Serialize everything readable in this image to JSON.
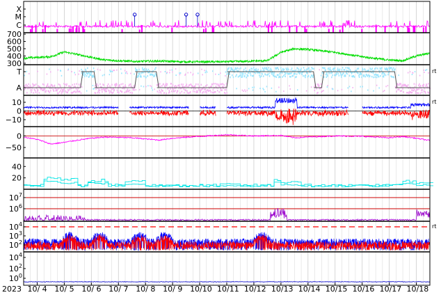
{
  "figure": {
    "year_label": "2023"
  },
  "chart_data": {
    "type": "line",
    "x": {
      "tick_labels": [
        "10/ 4",
        "10/ 5",
        "10/ 6",
        "10/ 7",
        "10/ 8",
        "10/ 9",
        "10/10",
        "10/11",
        "10/12",
        "10/13",
        "10/14",
        "10/15",
        "10/16",
        "10/17",
        "10/18"
      ],
      "range_days": [
        3.5,
        18.5
      ]
    },
    "panels": [
      {
        "id": "flare",
        "y_labels": [
          "X",
          "M",
          "C"
        ],
        "right_label": "",
        "series": [
          {
            "color": "#ff00ff",
            "kind": "flare-level"
          }
        ],
        "markers": [
          {
            "day": 7.6,
            "label": ""
          },
          {
            "day": 9.5,
            "label": ""
          },
          {
            "day": 9.92,
            "label": ""
          }
        ]
      },
      {
        "id": "solar-wind-speed",
        "y_labels": [
          "700",
          "600",
          "500",
          "400",
          "300"
        ],
        "ylim": [
          280,
          720
        ],
        "right_label": "",
        "series": [
          {
            "color": "#00dd00",
            "kind": "speed",
            "profile": [
              [
                3.5,
                370
              ],
              [
                4.5,
                390
              ],
              [
                5.0,
                455
              ],
              [
                5.5,
                420
              ],
              [
                6.0,
                380
              ],
              [
                6.5,
                345
              ],
              [
                7.5,
                325
              ],
              [
                8.5,
                330
              ],
              [
                9.5,
                320
              ],
              [
                10.5,
                320
              ],
              [
                11.5,
                325
              ],
              [
                12.5,
                335
              ],
              [
                13.0,
                450
              ],
              [
                13.5,
                500
              ],
              [
                14.0,
                490
              ],
              [
                14.5,
                470
              ],
              [
                15.0,
                450
              ],
              [
                15.5,
                420
              ],
              [
                16.0,
                390
              ],
              [
                16.5,
                365
              ],
              [
                17.0,
                345
              ],
              [
                17.5,
                335
              ],
              [
                18.0,
                400
              ],
              [
                18.5,
                440
              ]
            ]
          }
        ]
      },
      {
        "id": "imf-sector",
        "y_labels": [
          "T",
          "A"
        ],
        "right_label": "rt",
        "series": [
          {
            "color": "#99e6ff",
            "name": ""
          },
          {
            "color": "#f4b3f0",
            "name": ""
          },
          {
            "color": "#555555",
            "name": "",
            "steps": [
              [
                3.5,
                "A"
              ],
              [
                5.6,
                "T"
              ],
              [
                6.1,
                "A"
              ],
              [
                7.6,
                "T"
              ],
              [
                8.4,
                "A"
              ],
              [
                11.0,
                "T"
              ],
              [
                14.2,
                "A"
              ],
              [
                14.5,
                "T"
              ],
              [
                17.2,
                "A"
              ],
              [
                18.5,
                "A"
              ]
            ]
          }
        ]
      },
      {
        "id": "imf-bz",
        "y_labels": [
          "10",
          "0",
          "−10"
        ],
        "ylim": [
          -18,
          18
        ],
        "right_label": "rt",
        "series": [
          {
            "color": "#0000ff",
            "name": "",
            "kind": "bt"
          },
          {
            "color": "#ff0000",
            "name": "",
            "kind": "bz"
          }
        ]
      },
      {
        "id": "dst",
        "y_labels": [
          "0",
          "−50"
        ],
        "ylim": [
          -95,
          40
        ],
        "right_label": "",
        "series": [
          {
            "color": "#ff00ff",
            "name": "",
            "profile": [
              [
                3.5,
                -5
              ],
              [
                4.0,
                -15
              ],
              [
                4.5,
                -35
              ],
              [
                5.0,
                -28
              ],
              [
                5.5,
                -18
              ],
              [
                6.0,
                -10
              ],
              [
                6.5,
                -5
              ],
              [
                7.5,
                -8
              ],
              [
                8.5,
                -18
              ],
              [
                9.0,
                -10
              ],
              [
                10.0,
                -2
              ],
              [
                11.0,
                5
              ],
              [
                12.0,
                0
              ],
              [
                13.0,
                2
              ],
              [
                13.5,
                -8
              ],
              [
                14.0,
                -5
              ],
              [
                15.0,
                0
              ],
              [
                16.0,
                -2
              ],
              [
                17.0,
                -8
              ],
              [
                17.5,
                -3
              ],
              [
                18.0,
                -10
              ],
              [
                18.5,
                -20
              ]
            ]
          }
        ]
      },
      {
        "id": "kp",
        "y_labels": [
          "40",
          "20"
        ],
        "ylim": [
          0,
          55
        ],
        "right_label": "",
        "series": [
          {
            "color": "#00e5e5",
            "name": ""
          }
        ]
      },
      {
        "id": "proton",
        "y_labels": [
          "10^7",
          "10^6"
        ],
        "right_label": "",
        "series": [
          {
            "color": "#cc0000",
            "name": "",
            "kind": "reference-line"
          },
          {
            "color": "#9900cc",
            "name": ""
          }
        ]
      },
      {
        "id": "electron",
        "y_labels": [
          "10^4",
          "10^3",
          "10^2"
        ],
        "right_label": "rt",
        "series": [
          {
            "color": "#ff0000",
            "name": "",
            "kind": "threshold-dashed"
          },
          {
            "color": "#0000ff",
            "name": ""
          },
          {
            "color": "#ff0000",
            "name": ""
          }
        ]
      },
      {
        "id": "neutron",
        "y_labels": [
          "10^4",
          "10^2",
          "10^0"
        ],
        "right_label": "",
        "series": [
          {
            "color": "#0000cc",
            "name": ""
          }
        ]
      }
    ],
    "grid": true
  },
  "colors": {
    "axis": "#000000",
    "grid": "#cccccc",
    "text": "#000000"
  }
}
